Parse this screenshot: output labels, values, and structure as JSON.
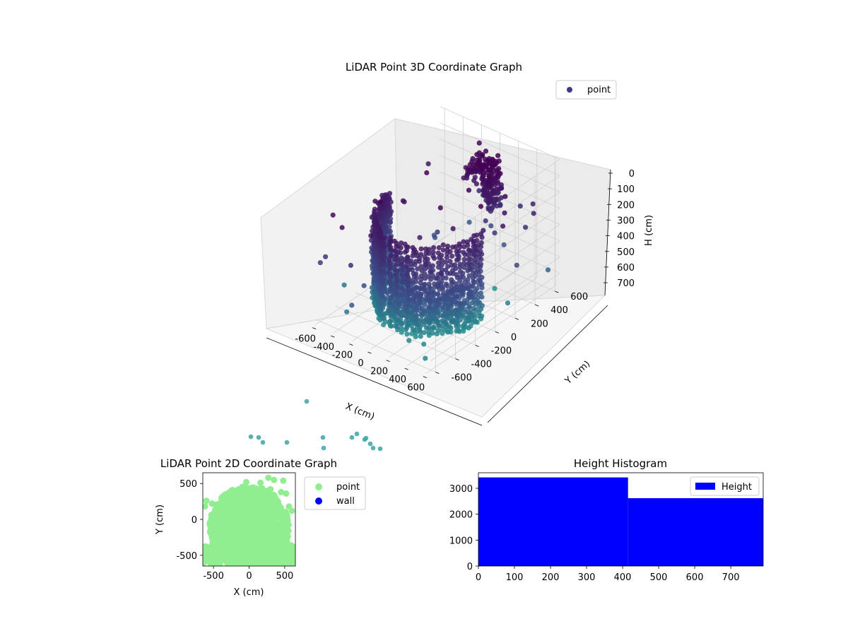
{
  "chart_data": [
    {
      "type": "scatter",
      "title": "LiDAR Point 3D Coordinate Graph",
      "xlabel": "X (cm)",
      "ylabel": "Y (cm)",
      "zlabel": "H (cm)",
      "x_ticks": [
        "-600",
        "-400",
        "-200",
        "0",
        "200",
        "400",
        "600"
      ],
      "y_ticks": [
        "-600",
        "-400",
        "-200",
        "0",
        "200",
        "400",
        "600"
      ],
      "z_ticks": [
        "0",
        "100",
        "200",
        "300",
        "400",
        "500",
        "600",
        "700"
      ],
      "xlim": [
        -650,
        650
      ],
      "ylim": [
        -650,
        650
      ],
      "zlim": [
        0,
        790
      ],
      "z_inverted": true,
      "grid": true,
      "legend": {
        "entries": [
          "point"
        ],
        "placement": "top-right"
      },
      "colors": {
        "top": "#440154",
        "mid": "#3b528b",
        "low": "#21918c"
      }
    },
    {
      "type": "scatter",
      "title": "LiDAR Point 2D Coordinate Graph",
      "xlabel": "X (cm)",
      "ylabel": "Y (cm)",
      "x_ticks": [
        "-500",
        "0",
        "500"
      ],
      "y_ticks": [
        "500",
        "0",
        "-500"
      ],
      "xlim": [
        -650,
        650
      ],
      "ylim": [
        -650,
        650
      ],
      "series": [
        {
          "name": "point",
          "color": "#90ee90"
        },
        {
          "name": "wall",
          "color": "#0000ff"
        }
      ],
      "legend": {
        "entries": [
          "point",
          "wall"
        ],
        "placement": "outside-right"
      }
    },
    {
      "type": "bar",
      "title": "Height Histogram",
      "x_ticks": [
        "0",
        "100",
        "200",
        "300",
        "400",
        "500",
        "600",
        "700"
      ],
      "y_ticks": [
        "0",
        "1000",
        "2000",
        "3000"
      ],
      "bins": [
        {
          "from": 0,
          "to": 415,
          "count": 3420
        },
        {
          "from": 415,
          "to": 790,
          "count": 2620
        }
      ],
      "xlim": [
        0,
        790
      ],
      "ylim": [
        0,
        3600
      ],
      "series": [
        {
          "name": "Height",
          "color": "#0000ff"
        }
      ],
      "legend": {
        "entries": [
          "Height"
        ],
        "placement": "top-right"
      }
    }
  ]
}
